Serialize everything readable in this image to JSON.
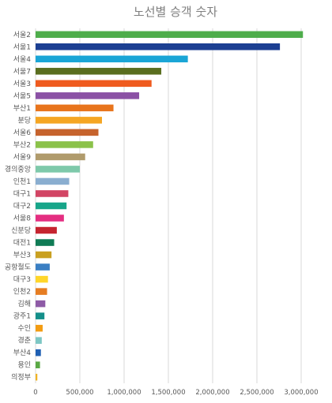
{
  "chart_data": {
    "type": "bar",
    "orientation": "horizontal",
    "title": "노선별 승객 숫자",
    "categories": [
      "서울2",
      "서울1",
      "서울4",
      "서울7",
      "서울3",
      "서울5",
      "부산1",
      "분당",
      "서울6",
      "부산2",
      "서울9",
      "경의중앙",
      "인천1",
      "대구1",
      "대구2",
      "서울8",
      "신분당",
      "대전1",
      "부산3",
      "공항철도",
      "대구3",
      "인천2",
      "김해",
      "광주1",
      "수인",
      "경춘",
      "부산4",
      "용인",
      "의정부"
    ],
    "values": [
      3020000,
      2760000,
      1720000,
      1420000,
      1310000,
      1170000,
      880000,
      750000,
      710000,
      650000,
      560000,
      500000,
      380000,
      370000,
      350000,
      320000,
      240000,
      210000,
      180000,
      160000,
      140000,
      130000,
      110000,
      100000,
      80000,
      70000,
      60000,
      50000,
      20000
    ],
    "colors": [
      "#4ead4b",
      "#1c3f92",
      "#1aa5d6",
      "#5a6e1f",
      "#ef5b1f",
      "#8b51a5",
      "#e8741c",
      "#f5a623",
      "#c6632d",
      "#8bc24a",
      "#b09b6c",
      "#7ec9aa",
      "#8aaed0",
      "#d24564",
      "#17a589",
      "#e42e81",
      "#c5242f",
      "#0f7b55",
      "#c9a021",
      "#3a7fc3",
      "#ffd62a",
      "#e67d22",
      "#8e5ba6",
      "#158f8a",
      "#f39c12",
      "#7dc7c4",
      "#1f5fb3",
      "#5aa844",
      "#f0b323"
    ],
    "xlim": [
      0,
      3000000
    ],
    "xticks": [
      0,
      500000,
      1000000,
      1500000,
      2000000,
      2500000,
      3000000
    ],
    "xtick_labels": [
      "0",
      "500,000",
      "1,000,000",
      "1,500,000",
      "2,000,000",
      "2,500,000",
      "3,000,000"
    ],
    "grid": true,
    "legend": "none"
  }
}
